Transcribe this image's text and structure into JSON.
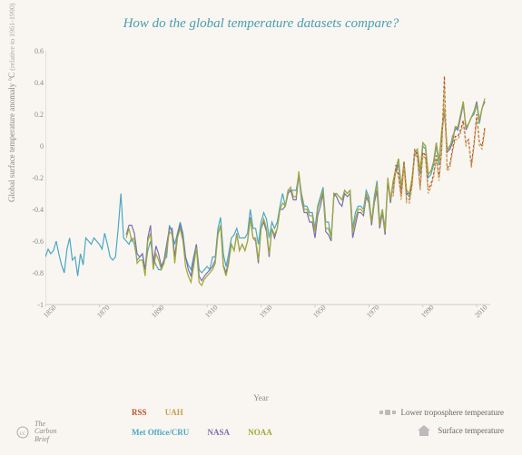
{
  "title": "How do the global temperature datasets compare?",
  "ylabel_main": "Global surface temperature anomaly °C",
  "ylabel_sub": "(relative to 1961-1990)",
  "xlabel": "Year",
  "background_color": "#f9f6f1",
  "title_color": "#4a9db0",
  "axis_color": "#cccccc",
  "tick_color": "#888888",
  "xlim": [
    1850,
    2015
  ],
  "ylim": [
    -1.0,
    0.6
  ],
  "yticks": [
    -1,
    -0.8,
    -0.6,
    -0.4,
    -0.2,
    0,
    0.2,
    0.4,
    0.6
  ],
  "xticks": [
    1850,
    1870,
    1890,
    1910,
    1930,
    1950,
    1970,
    1990,
    2010
  ],
  "series": {
    "met_office": {
      "label": "Met Office/CRU",
      "color": "#4aa8c2",
      "width": 1.2,
      "start_year": 1850,
      "values": [
        -0.7,
        -0.65,
        -0.68,
        -0.66,
        -0.6,
        -0.68,
        -0.75,
        -0.8,
        -0.65,
        -0.58,
        -0.72,
        -0.7,
        -0.82,
        -0.68,
        -0.75,
        -0.58,
        -0.6,
        -0.62,
        -0.58,
        -0.6,
        -0.62,
        -0.65,
        -0.55,
        -0.62,
        -0.7,
        -0.72,
        -0.7,
        -0.52,
        -0.3,
        -0.58,
        -0.6,
        -0.62,
        -0.58,
        -0.62,
        -0.72,
        -0.7,
        -0.68,
        -0.78,
        -0.66,
        -0.6,
        -0.7,
        -0.75,
        -0.78,
        -0.78,
        -0.72,
        -0.7,
        -0.5,
        -0.55,
        -0.62,
        -0.55,
        -0.48,
        -0.55,
        -0.7,
        -0.75,
        -0.78,
        -0.7,
        -0.62,
        -0.78,
        -0.8,
        -0.78,
        -0.76,
        -0.78,
        -0.7,
        -0.7,
        -0.52,
        -0.45,
        -0.68,
        -0.76,
        -0.68,
        -0.58,
        -0.56,
        -0.52,
        -0.58,
        -0.58,
        -0.58,
        -0.55,
        -0.4,
        -0.52,
        -0.52,
        -0.62,
        -0.48,
        -0.42,
        -0.46,
        -0.58,
        -0.48,
        -0.52,
        -0.48,
        -0.38,
        -0.3,
        -0.38,
        -0.28,
        -0.28,
        -0.28,
        -0.28,
        -0.18,
        -0.3,
        -0.38,
        -0.38,
        -0.42,
        -0.42,
        -0.52,
        -0.38,
        -0.32,
        -0.26,
        -0.48,
        -0.48,
        -0.58,
        -0.32,
        -0.3,
        -0.32,
        -0.34,
        -0.28,
        -0.3,
        -0.28,
        -0.52,
        -0.42,
        -0.38,
        -0.38,
        -0.4,
        -0.28,
        -0.32,
        -0.48,
        -0.32,
        -0.22,
        -0.48,
        -0.4,
        -0.52,
        -0.22,
        -0.34,
        -0.24,
        -0.16,
        -0.12,
        -0.26,
        -0.12,
        -0.3,
        -0.32,
        -0.22,
        -0.06,
        -0.04,
        -0.18,
        0.0,
        -0.02,
        -0.2,
        -0.18,
        -0.12,
        0.0,
        -0.12,
        0.08,
        0.22,
        -0.02,
        -0.02,
        0.06,
        0.1,
        0.12,
        0.18,
        0.26,
        0.12,
        0.14,
        0.18,
        0.2,
        0.26,
        0.14,
        0.24,
        0.28
      ]
    },
    "nasa": {
      "label": "NASA",
      "color": "#7a6fb0",
      "width": 1.2,
      "start_year": 1880,
      "values": [
        -0.56,
        -0.5,
        -0.5,
        -0.55,
        -0.68,
        -0.7,
        -0.68,
        -0.78,
        -0.58,
        -0.5,
        -0.75,
        -0.63,
        -0.68,
        -0.76,
        -0.72,
        -0.62,
        -0.52,
        -0.52,
        -0.7,
        -0.56,
        -0.5,
        -0.57,
        -0.7,
        -0.78,
        -0.82,
        -0.72,
        -0.62,
        -0.82,
        -0.85,
        -0.82,
        -0.8,
        -0.78,
        -0.76,
        -0.72,
        -0.55,
        -0.5,
        -0.75,
        -0.8,
        -0.72,
        -0.62,
        -0.66,
        -0.55,
        -0.66,
        -0.62,
        -0.66,
        -0.6,
        -0.45,
        -0.58,
        -0.6,
        -0.74,
        -0.52,
        -0.48,
        -0.54,
        -0.7,
        -0.52,
        -0.58,
        -0.52,
        -0.4,
        -0.4,
        -0.38,
        -0.3,
        -0.28,
        -0.34,
        -0.34,
        -0.18,
        -0.34,
        -0.42,
        -0.42,
        -0.48,
        -0.48,
        -0.58,
        -0.44,
        -0.38,
        -0.3,
        -0.54,
        -0.56,
        -0.6,
        -0.3,
        -0.32,
        -0.36,
        -0.38,
        -0.3,
        -0.32,
        -0.3,
        -0.58,
        -0.5,
        -0.42,
        -0.42,
        -0.44,
        -0.32,
        -0.36,
        -0.5,
        -0.36,
        -0.28,
        -0.52,
        -0.42,
        -0.56,
        -0.22,
        -0.36,
        -0.22,
        -0.16,
        -0.08,
        -0.28,
        -0.1,
        -0.3,
        -0.3,
        -0.22,
        -0.04,
        -0.02,
        -0.16,
        0.02,
        0.0,
        -0.18,
        -0.16,
        -0.1,
        0.02,
        -0.1,
        0.08,
        0.22,
        -0.04,
        -0.02,
        0.02,
        0.12,
        0.1,
        0.18,
        0.28,
        0.1,
        0.14,
        0.18,
        0.22,
        0.28,
        0.16,
        0.24,
        0.28
      ]
    },
    "noaa": {
      "label": "NOAA",
      "color": "#a0a838",
      "width": 1.2,
      "start_year": 1880,
      "values": [
        -0.58,
        -0.52,
        -0.6,
        -0.58,
        -0.74,
        -0.72,
        -0.72,
        -0.82,
        -0.6,
        -0.55,
        -0.78,
        -0.68,
        -0.72,
        -0.78,
        -0.74,
        -0.66,
        -0.54,
        -0.56,
        -0.74,
        -0.58,
        -0.52,
        -0.6,
        -0.76,
        -0.82,
        -0.86,
        -0.76,
        -0.64,
        -0.86,
        -0.88,
        -0.84,
        -0.82,
        -0.8,
        -0.78,
        -0.74,
        -0.56,
        -0.5,
        -0.76,
        -0.82,
        -0.74,
        -0.62,
        -0.66,
        -0.56,
        -0.66,
        -0.62,
        -0.66,
        -0.6,
        -0.46,
        -0.58,
        -0.58,
        -0.72,
        -0.52,
        -0.46,
        -0.52,
        -0.68,
        -0.52,
        -0.56,
        -0.52,
        -0.4,
        -0.36,
        -0.38,
        -0.28,
        -0.26,
        -0.32,
        -0.32,
        -0.16,
        -0.32,
        -0.4,
        -0.4,
        -0.44,
        -0.44,
        -0.54,
        -0.4,
        -0.34,
        -0.28,
        -0.52,
        -0.52,
        -0.58,
        -0.3,
        -0.3,
        -0.32,
        -0.34,
        -0.28,
        -0.3,
        -0.28,
        -0.54,
        -0.46,
        -0.4,
        -0.4,
        -0.42,
        -0.3,
        -0.34,
        -0.48,
        -0.34,
        -0.24,
        -0.5,
        -0.4,
        -0.54,
        -0.2,
        -0.34,
        -0.22,
        -0.14,
        -0.08,
        -0.26,
        -0.1,
        -0.28,
        -0.3,
        -0.2,
        -0.04,
        -0.02,
        -0.16,
        0.02,
        0.0,
        -0.18,
        -0.16,
        -0.1,
        0.02,
        -0.1,
        0.1,
        0.24,
        -0.02,
        0.0,
        0.04,
        0.12,
        0.12,
        0.2,
        0.28,
        0.12,
        0.14,
        0.18,
        0.22,
        0.26,
        0.16,
        0.24,
        0.3
      ]
    },
    "rss": {
      "label": "RSS",
      "color": "#b8502a",
      "width": 1.2,
      "dash": "3,2",
      "start_year": 1979,
      "values": [
        -0.3,
        -0.12,
        -0.18,
        -0.32,
        -0.1,
        -0.34,
        -0.34,
        -0.24,
        -0.02,
        -0.06,
        -0.26,
        -0.04,
        -0.06,
        -0.28,
        -0.24,
        -0.18,
        -0.06,
        -0.2,
        -0.02,
        0.44,
        -0.14,
        -0.12,
        -0.02,
        0.06,
        0.06,
        0.1,
        0.16,
        0.02,
        0.04,
        -0.12,
        0.02,
        0.2,
        0.02,
        0.0,
        0.12
      ]
    },
    "uah": {
      "label": "UAH",
      "color": "#c4a050",
      "width": 1.2,
      "dash": "3,2",
      "start_year": 1979,
      "values": [
        -0.32,
        -0.14,
        -0.2,
        -0.34,
        -0.12,
        -0.36,
        -0.36,
        -0.26,
        -0.04,
        -0.08,
        -0.28,
        -0.06,
        -0.08,
        -0.3,
        -0.26,
        -0.2,
        -0.08,
        -0.22,
        -0.04,
        0.36,
        -0.16,
        -0.14,
        -0.04,
        0.04,
        0.04,
        0.08,
        0.14,
        0.0,
        0.02,
        -0.14,
        0.0,
        0.18,
        0.0,
        -0.02,
        0.1
      ]
    }
  },
  "legend": {
    "rss": "RSS",
    "uah": "UAH",
    "met_office": "Met Office/CRU",
    "nasa": "NASA",
    "noaa": "NOAA",
    "lower_trop": "Lower troposphere temperature",
    "surface": "Surface temperature"
  },
  "credit": {
    "line1": "The",
    "line2": "Carbon",
    "line3": "Brief"
  }
}
